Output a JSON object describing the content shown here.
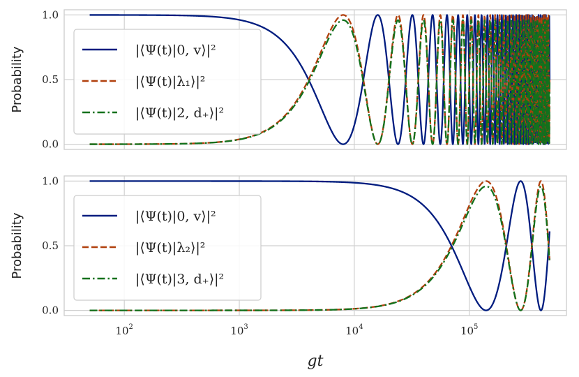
{
  "chart_data": [
    {
      "type": "line",
      "title": "",
      "xlabel": "",
      "ylabel": "Probability",
      "xscale": "log",
      "xlim": [
        30,
        700000
      ],
      "ylim": [
        -0.04,
        1.04
      ],
      "x_ticks": [
        {
          "base": "10",
          "exp": "2"
        },
        {
          "base": "10",
          "exp": "3"
        },
        {
          "base": "10",
          "exp": "4"
        },
        {
          "base": "10",
          "exp": "5"
        }
      ],
      "y_ticks": [
        "0.0",
        "0.5",
        "1.0"
      ],
      "grid": true,
      "legend_position": "center-left",
      "model": {
        "t_start": 50,
        "t_end": 500000,
        "t_peak": 8000,
        "t_half": 4000
      },
      "series": [
        {
          "name": "|⟨Ψ(t)|0, v⟩|²",
          "color": "#001c7f",
          "style": "solid",
          "role": "initial"
        },
        {
          "name": "|⟨Ψ(t)|λ₁⟩|²",
          "color": "#b1400d",
          "style": "dashed",
          "role": "target"
        },
        {
          "name": "|⟨Ψ(t)|2, d₊⟩|²",
          "color": "#12711c",
          "style": "dashdot",
          "role": "target",
          "amplitude": 0.96
        }
      ]
    },
    {
      "type": "line",
      "title": "",
      "xlabel": "gt",
      "ylabel": "Probability",
      "xscale": "log",
      "xlim": [
        30,
        700000
      ],
      "ylim": [
        -0.04,
        1.04
      ],
      "x_ticks": [
        {
          "base": "10",
          "exp": "2"
        },
        {
          "base": "10",
          "exp": "3"
        },
        {
          "base": "10",
          "exp": "4"
        },
        {
          "base": "10",
          "exp": "5"
        }
      ],
      "y_ticks": [
        "0.0",
        "0.5",
        "1.0"
      ],
      "grid": true,
      "legend_position": "center-left",
      "model": {
        "t_start": 50,
        "t_end": 500000,
        "t_peak": 140000,
        "t_half": 70000
      },
      "series": [
        {
          "name": "|⟨Ψ(t)|0, v⟩|²",
          "color": "#001c7f",
          "style": "solid",
          "role": "initial"
        },
        {
          "name": "|⟨Ψ(t)|λ₂⟩|²",
          "color": "#b1400d",
          "style": "dashed",
          "role": "target"
        },
        {
          "name": "|⟨Ψ(t)|3, d₊⟩|²",
          "color": "#12711c",
          "style": "dashdot",
          "role": "target",
          "amplitude": 0.96
        }
      ]
    }
  ]
}
